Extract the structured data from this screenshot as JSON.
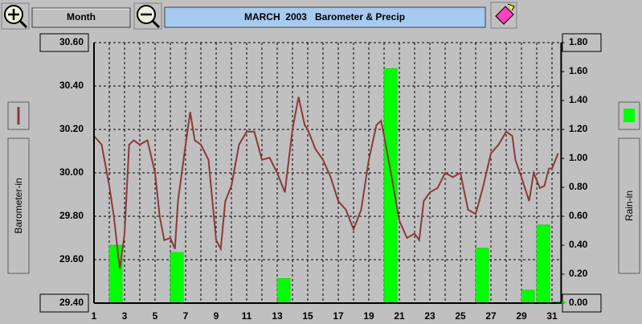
{
  "ui": {
    "period_button": "Month"
  },
  "chart_data": {
    "type": "bar-line",
    "title": "MARCH  2003   Barometer & Precip",
    "xlim": [
      1,
      31.6
    ],
    "xticks": [
      1,
      3,
      5,
      7,
      9,
      11,
      13,
      15,
      17,
      19,
      21,
      23,
      25,
      27,
      29,
      31
    ],
    "minor_xticks": [
      2,
      4,
      6,
      8,
      10,
      12,
      14,
      16,
      18,
      20,
      22,
      24,
      26,
      28,
      30
    ],
    "ylim": [
      29.4,
      30.6
    ],
    "yticks": [
      {
        "value": 29.4,
        "label": "29.40"
      },
      {
        "value": 29.6,
        "label": "29.60"
      },
      {
        "value": 29.8,
        "label": "29.80"
      },
      {
        "value": 30.0,
        "label": "30.00"
      },
      {
        "value": 30.2,
        "label": "30.20"
      },
      {
        "value": 30.4,
        "label": "30.40"
      },
      {
        "value": 30.6,
        "label": "30.60"
      }
    ],
    "y2lim": [
      0,
      1.8
    ],
    "y2ticks": [
      {
        "value": 0,
        "label": "0.00"
      },
      {
        "value": 0.2,
        "label": "0.20"
      },
      {
        "value": 0.4,
        "label": "0.40"
      },
      {
        "value": 0.6,
        "label": "0.60"
      },
      {
        "value": 0.8,
        "label": "0.80"
      },
      {
        "value": 1.0,
        "label": "1.00"
      },
      {
        "value": 1.2,
        "label": "1.20"
      },
      {
        "value": 1.4,
        "label": "1.40"
      },
      {
        "value": 1.6,
        "label": "1.60"
      },
      {
        "value": 1.8,
        "label": "1.80"
      }
    ],
    "grid": true,
    "series": [
      {
        "name": "Barometer-in",
        "kind": "line",
        "color": "#8b3a3a",
        "x": [
          1,
          1.5,
          2,
          2.3,
          2.6,
          2.7,
          3,
          3.3,
          3.6,
          4,
          4.5,
          5,
          5.3,
          5.6,
          6,
          6.3,
          6.5,
          7,
          7.3,
          7.6,
          8,
          8.5,
          9,
          9.3,
          9.6,
          10,
          10.5,
          11,
          11.5,
          12,
          12.5,
          13,
          13.5,
          14,
          14.4,
          14.8,
          15,
          15.5,
          16,
          16.5,
          17,
          17.5,
          18,
          18.5,
          19,
          19.5,
          19.8,
          20,
          20.5,
          21,
          21.5,
          22,
          22.3,
          22.6,
          23,
          23.5,
          24,
          24.5,
          25,
          25.5,
          26,
          26.5,
          27,
          27.5,
          28,
          28.4,
          28.6,
          29,
          29.5,
          29.8,
          30.2,
          30.5,
          30.8,
          31,
          31.4
        ],
        "values": [
          30.17,
          30.13,
          29.94,
          29.8,
          29.61,
          29.56,
          29.72,
          30.13,
          30.15,
          30.13,
          30.15,
          30.0,
          29.8,
          29.69,
          29.7,
          29.65,
          29.87,
          30.13,
          30.28,
          30.15,
          30.13,
          30.06,
          29.69,
          29.65,
          29.87,
          29.94,
          30.13,
          30.19,
          30.19,
          30.06,
          30.07,
          30.0,
          29.91,
          30.2,
          30.35,
          30.22,
          30.2,
          30.11,
          30.06,
          29.98,
          29.87,
          29.83,
          29.74,
          29.83,
          30.06,
          30.22,
          30.24,
          30.17,
          29.98,
          29.78,
          29.7,
          29.72,
          29.69,
          29.87,
          29.91,
          29.93,
          30.0,
          29.98,
          30.0,
          29.83,
          29.81,
          29.94,
          30.09,
          30.13,
          30.19,
          30.17,
          30.06,
          29.98,
          29.87,
          30.0,
          29.93,
          29.94,
          30.02,
          30.02,
          30.09
        ]
      },
      {
        "name": "Rain-in",
        "kind": "bar",
        "color": "#00ff00",
        "axis": "y2",
        "x": [
          2,
          6,
          13,
          20,
          26,
          29,
          30,
          31
        ],
        "values": [
          0.4,
          0.35,
          0.17,
          1.62,
          0.38,
          0.09,
          0.54,
          0.01
        ]
      }
    ]
  }
}
